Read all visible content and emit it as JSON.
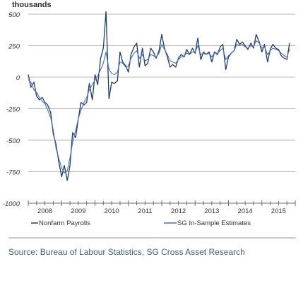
{
  "chart_data": {
    "type": "line",
    "unit_label": "thousands",
    "ylim": [
      -1000,
      500
    ],
    "yticks": [
      500,
      250,
      0,
      -250,
      -500,
      -750,
      -1000
    ],
    "ytick_labels": [
      "500",
      "250",
      "0",
      "-250",
      "-500",
      "-750",
      "-1000"
    ],
    "xlim": [
      2008,
      2016
    ],
    "xticks": [
      2008,
      2009,
      2010,
      2011,
      2012,
      2013,
      2014,
      2015
    ],
    "xtick_labels": [
      "2008",
      "2009",
      "2010",
      "2011",
      "2012",
      "2013",
      "2014",
      "2015"
    ],
    "grid": "horizontal",
    "legend_position": "bottom",
    "series": [
      {
        "name": "Nonfarm Payrolls",
        "color": "#1f3b70",
        "x": [
          2008.0,
          2008.08,
          2008.17,
          2008.25,
          2008.33,
          2008.42,
          2008.5,
          2008.58,
          2008.67,
          2008.75,
          2008.83,
          2008.92,
          2009.0,
          2009.08,
          2009.17,
          2009.25,
          2009.33,
          2009.42,
          2009.5,
          2009.58,
          2009.67,
          2009.75,
          2009.83,
          2009.92,
          2010.0,
          2010.08,
          2010.17,
          2010.25,
          2010.33,
          2010.42,
          2010.5,
          2010.58,
          2010.67,
          2010.75,
          2010.83,
          2010.92,
          2011.0,
          2011.08,
          2011.17,
          2011.25,
          2011.33,
          2011.42,
          2011.5,
          2011.58,
          2011.67,
          2011.75,
          2011.83,
          2011.92,
          2012.0,
          2012.08,
          2012.17,
          2012.25,
          2012.33,
          2012.42,
          2012.5,
          2012.58,
          2012.67,
          2012.75,
          2012.83,
          2012.92,
          2013.0,
          2013.08,
          2013.17,
          2013.25,
          2013.33,
          2013.42,
          2013.5,
          2013.58,
          2013.67,
          2013.75,
          2013.83,
          2013.92,
          2014.0,
          2014.08,
          2014.17,
          2014.25,
          2014.33,
          2014.42,
          2014.5,
          2014.58,
          2014.67,
          2014.75,
          2014.83,
          2014.92,
          2015.0,
          2015.08,
          2015.17,
          2015.25,
          2015.33,
          2015.42,
          2015.5,
          2015.58,
          2015.67,
          2015.75,
          2015.83
        ],
        "values": [
          20,
          -80,
          -40,
          -150,
          -180,
          -160,
          -200,
          -220,
          -280,
          -450,
          -530,
          -680,
          -790,
          -700,
          -820,
          -700,
          -440,
          -480,
          -330,
          -200,
          -220,
          -200,
          -50,
          -180,
          20,
          -60,
          150,
          230,
          520,
          -170,
          -40,
          -50,
          -30,
          200,
          120,
          90,
          40,
          180,
          240,
          270,
          80,
          230,
          90,
          110,
          230,
          200,
          150,
          210,
          340,
          230,
          160,
          80,
          100,
          80,
          150,
          180,
          160,
          220,
          180,
          230,
          190,
          310,
          140,
          200,
          180,
          200,
          120,
          200,
          180,
          240,
          260,
          60,
          160,
          190,
          210,
          300,
          260,
          280,
          250,
          220,
          270,
          230,
          340,
          280,
          200,
          260,
          120,
          220,
          260,
          230,
          220,
          170,
          150,
          140,
          270
        ]
      },
      {
        "name": "SG In-Sample Estimates",
        "color": "#4472c4",
        "x": [
          2008.0,
          2008.08,
          2008.17,
          2008.25,
          2008.33,
          2008.42,
          2008.5,
          2008.58,
          2008.67,
          2008.75,
          2008.83,
          2008.92,
          2009.0,
          2009.08,
          2009.17,
          2009.25,
          2009.33,
          2009.42,
          2009.5,
          2009.58,
          2009.67,
          2009.75,
          2009.83,
          2009.92,
          2010.0,
          2010.08,
          2010.17,
          2010.25,
          2010.33,
          2010.42,
          2010.5,
          2010.58,
          2010.67,
          2010.75,
          2010.83,
          2010.92,
          2011.0,
          2011.08,
          2011.17,
          2011.25,
          2011.33,
          2011.42,
          2011.5,
          2011.58,
          2011.67,
          2011.75,
          2011.83,
          2011.92,
          2012.0,
          2012.08,
          2012.17,
          2012.25,
          2012.33,
          2012.42,
          2012.5,
          2012.58,
          2012.67,
          2012.75,
          2012.83,
          2012.92,
          2013.0,
          2013.08,
          2013.17,
          2013.25,
          2013.33,
          2013.42,
          2013.5,
          2013.58,
          2013.67,
          2013.75,
          2013.83,
          2013.92,
          2014.0,
          2014.08,
          2014.17,
          2014.25,
          2014.33,
          2014.42,
          2014.5,
          2014.58,
          2014.67,
          2014.75,
          2014.83,
          2014.92,
          2015.0,
          2015.08,
          2015.17,
          2015.25,
          2015.33,
          2015.42,
          2015.5,
          2015.58,
          2015.67,
          2015.75,
          2015.83
        ],
        "values": [
          -20,
          -40,
          -100,
          -120,
          -160,
          -190,
          -210,
          -260,
          -320,
          -420,
          -560,
          -650,
          -720,
          -760,
          -740,
          -640,
          -520,
          -420,
          -330,
          -260,
          -200,
          -160,
          -100,
          -60,
          -20,
          10,
          60,
          110,
          200,
          60,
          30,
          20,
          40,
          120,
          110,
          80,
          90,
          150,
          190,
          210,
          150,
          180,
          130,
          140,
          180,
          170,
          160,
          190,
          260,
          220,
          180,
          130,
          120,
          110,
          140,
          160,
          170,
          190,
          180,
          200,
          200,
          250,
          180,
          190,
          180,
          190,
          160,
          190,
          190,
          210,
          230,
          140,
          170,
          190,
          210,
          260,
          250,
          260,
          240,
          230,
          250,
          240,
          290,
          270,
          230,
          240,
          180,
          210,
          230,
          220,
          210,
          190,
          170,
          160,
          220
        ]
      }
    ],
    "legend": [
      {
        "label": "Nonfarm Payrolls",
        "color": "#1f3b70"
      },
      {
        "label": "SG In-Sample Estimates",
        "color": "#4472c4"
      }
    ]
  },
  "source": "Source: Bureau of Labour Statistics, SG Cross Asset Research"
}
